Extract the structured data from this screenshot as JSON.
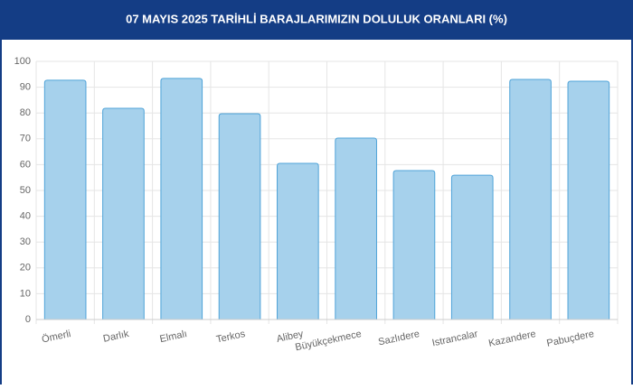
{
  "chart_data": {
    "type": "bar",
    "title": "07 MAYIS 2025 TARİHLİ BARAJLARIMIZIN DOLULUK ORANLARI (%)",
    "categories": [
      "Ömerli",
      "Darlık",
      "Elmalı",
      "Terkos",
      "Alibey",
      "Büyükçekmece",
      "Sazlıdere",
      "Istrancalar",
      "Kazandere",
      "Pabuçdere"
    ],
    "values": [
      92.7,
      81.8,
      93.4,
      79.7,
      60.5,
      70.3,
      57.7,
      55.9,
      93.0,
      92.3
    ],
    "color": "#a6d1ec",
    "border_color": "#4fa3d8",
    "ylim": [
      0,
      100
    ],
    "yticks": [
      0,
      10,
      20,
      30,
      40,
      50,
      60,
      70,
      80,
      90,
      100
    ],
    "grid": true
  }
}
